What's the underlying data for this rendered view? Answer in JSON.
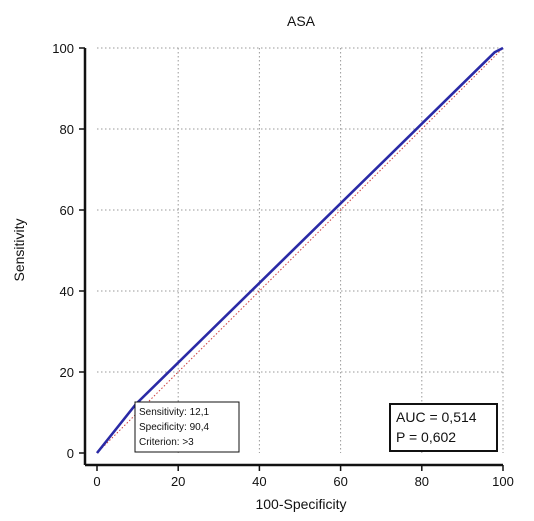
{
  "chart_data": {
    "type": "line",
    "title": "ASA",
    "xlabel": "100-Specificity",
    "ylabel": "Sensitivity",
    "xlim": [
      0,
      100
    ],
    "ylim": [
      0,
      100
    ],
    "xticks": [
      "0",
      "20",
      "40",
      "60",
      "80",
      "100"
    ],
    "yticks": [
      "0",
      "20",
      "40",
      "60",
      "80",
      "100"
    ],
    "grid": true,
    "series": [
      {
        "color": "#2a2aa6",
        "style": "solid",
        "x": [
          0,
          9.6,
          98,
          100
        ],
        "y": [
          0,
          12.1,
          99,
          100
        ]
      },
      {
        "color": "#d04040",
        "style": "dotted",
        "x": [
          0,
          100
        ],
        "y": [
          0,
          100
        ]
      }
    ],
    "annotations": {
      "criterion_box": {
        "sensitivity": "Sensitivity:  12,1",
        "specificity": "Specificity:  90,4",
        "criterion": "Criterion:  >3"
      },
      "stats_box": {
        "auc": "AUC = 0,514",
        "p": "P = 0,602"
      }
    }
  }
}
